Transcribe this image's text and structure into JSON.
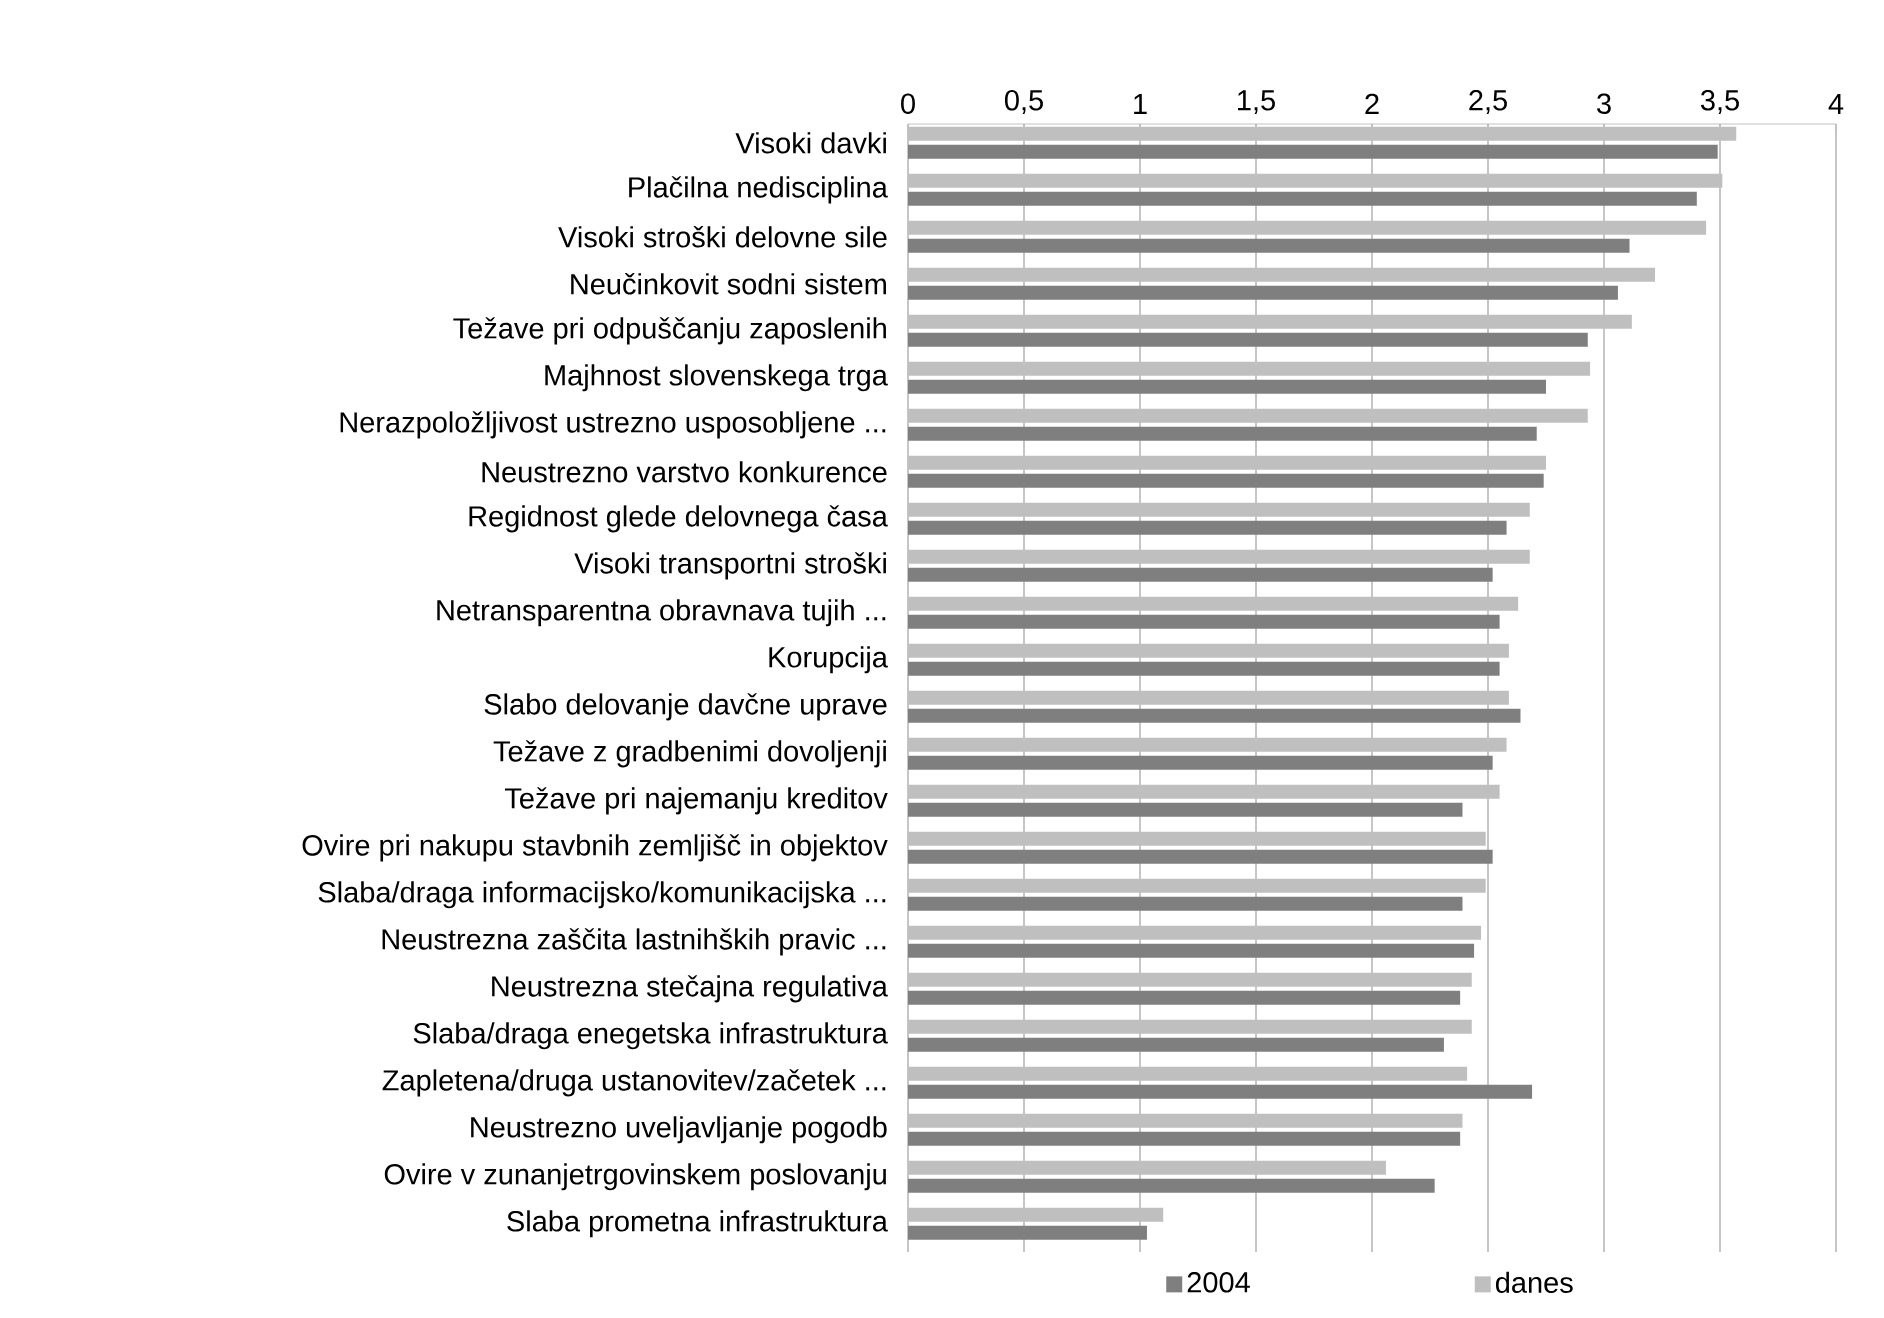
{
  "chart_data": {
    "type": "bar",
    "orientation": "horizontal",
    "categories": [
      "Visoki davki",
      "Plačilna nedisciplina",
      "Visoki stroški delovne sile",
      "Neučinkovit sodni sistem",
      "Težave pri odpuščanju zaposlenih",
      "Majhnost slovenskega trga",
      "Nerazpoložljivost ustrezno usposobljene ...",
      "Neustrezno varstvo konkurence",
      "Regidnost glede delovnega časa",
      "Visoki transportni stroški",
      "Netransparentna obravnava tujih ...",
      "Korupcija",
      "Slabo delovanje davčne uprave",
      "Težave z gradbenimi dovoljenji",
      "Težave pri najemanju kreditov",
      "Ovire pri nakupu stavbnih zemljišč in objektov",
      "Slaba/draga informacijsko/komunikacijska ...",
      "Neustrezna zaščita lastnihških pravic ...",
      "Neustrezna stečajna regulativa",
      "Slaba/draga enegetska infrastruktura",
      "Zapletena/druga ustanovitev/začetek ...",
      "Neustrezno uveljavljanje pogodb",
      "Ovire v zunanjetrgovinskem poslovanju",
      "Slaba prometna infrastruktura"
    ],
    "series": [
      {
        "name": "2004",
        "color": "#7f7f7f",
        "values": [
          3.49,
          3.4,
          3.11,
          3.06,
          2.93,
          2.75,
          2.71,
          2.74,
          2.58,
          2.52,
          2.55,
          2.55,
          2.64,
          2.52,
          2.39,
          2.52,
          2.39,
          2.44,
          2.38,
          2.31,
          2.69,
          2.38,
          2.27,
          1.03
        ]
      },
      {
        "name": "danes",
        "color": "#bfbfbf",
        "values": [
          3.57,
          3.51,
          3.44,
          3.22,
          3.12,
          2.94,
          2.93,
          2.75,
          2.68,
          2.68,
          2.63,
          2.59,
          2.59,
          2.58,
          2.55,
          2.49,
          2.49,
          2.47,
          2.43,
          2.43,
          2.41,
          2.39,
          2.06,
          1.1
        ]
      }
    ],
    "xlim": [
      0,
      4
    ],
    "xticks": [
      0,
      {
        "value": 0.5,
        "label": "0,5"
      },
      1,
      {
        "value": 1.5,
        "label": "1,5"
      },
      2,
      {
        "value": 2.5,
        "label": "2,5"
      },
      3,
      {
        "value": 3.5,
        "label": "3,5"
      },
      4
    ],
    "grid": "x",
    "legend": "bottom"
  }
}
